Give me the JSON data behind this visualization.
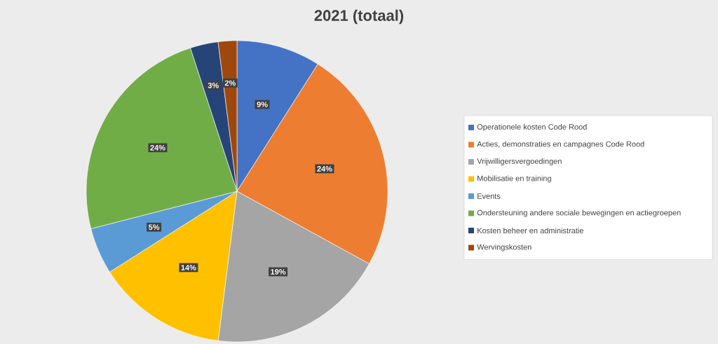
{
  "chart_data": {
    "type": "pie",
    "title": "2021 (totaal)",
    "categories": [
      "Operationele kosten Code Rood",
      "Acties, demonstraties en campagnes Code Rood",
      "Vrijwilligersvergoedingen",
      "Mobilisatie en training",
      "Events",
      "Ondersteuning andere sociale bewegingen en actiegroepen",
      "Kosten beheer en administratie",
      "Wervingskosten"
    ],
    "values": [
      9,
      24,
      19,
      14,
      5,
      24,
      3,
      2
    ],
    "value_labels": [
      "9%",
      "24%",
      "19%",
      "14%",
      "5%",
      "24%",
      "3%",
      "2%"
    ],
    "colors": [
      "#4472c4",
      "#ed7d31",
      "#a5a5a5",
      "#ffc000",
      "#5b9bd5",
      "#70ad47",
      "#264478",
      "#9e480e"
    ],
    "legend": "right"
  }
}
